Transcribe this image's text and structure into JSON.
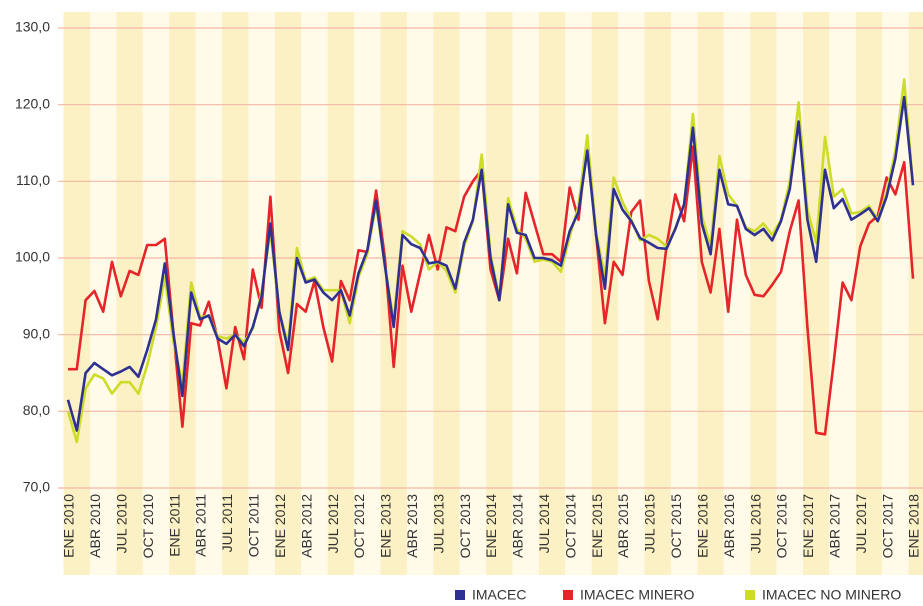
{
  "chart_data": {
    "type": "line",
    "categories": [
      "ENE 2010",
      null,
      null,
      "ABR 2010",
      null,
      null,
      "JUL 2010",
      null,
      null,
      "OCT 2010",
      null,
      null,
      "ENE 2011",
      null,
      null,
      "ABR 2011",
      null,
      null,
      "JUL 2011",
      null,
      null,
      "OCT 2011",
      null,
      null,
      "ENE 2012",
      null,
      null,
      "ABR 2012",
      null,
      null,
      "JUL 2012",
      null,
      null,
      "OCT 2012",
      null,
      null,
      "ENE 2013",
      null,
      null,
      "ABR 2013",
      null,
      null,
      "JUL 2013",
      null,
      null,
      "OCT 2013",
      null,
      null,
      "ENE 2014",
      null,
      null,
      "ABR 2014",
      null,
      null,
      "JUL 2014",
      null,
      null,
      "OCT 2014",
      null,
      null,
      "ENE 2015",
      null,
      null,
      "ABR 2015",
      null,
      null,
      "JUL 2015",
      null,
      null,
      "OCT 2015",
      null,
      null,
      "ENE 2016",
      null,
      null,
      "ABR 2016",
      null,
      null,
      "JUL 2016",
      null,
      null,
      "OCT 2016",
      null,
      null,
      "ENE 2017",
      null,
      null,
      "ABR 2017",
      null,
      null,
      "JUL 2017",
      null,
      null,
      "OCT 2017",
      null,
      null,
      "ENE 2018"
    ],
    "series": [
      {
        "name": "IMACEC",
        "color": "#2e3192",
        "values": [
          81.5,
          77.5,
          85,
          86.3,
          85.5,
          84.7,
          85.2,
          85.8,
          84.5,
          88,
          92,
          99.3,
          90,
          82,
          95.5,
          92,
          92.5,
          89.5,
          88.8,
          90,
          88.5,
          91,
          95,
          104.5,
          93,
          88,
          100,
          96.8,
          97.2,
          95.5,
          94.5,
          95.8,
          92.5,
          98,
          101,
          107.5,
          99,
          91,
          103,
          101.8,
          101.3,
          99.3,
          99.5,
          99,
          96,
          102,
          105,
          111.5,
          100,
          94.5,
          107,
          103.3,
          103,
          100,
          100,
          99.7,
          99,
          103.5,
          106,
          114,
          103,
          96,
          109,
          106.3,
          104.8,
          102.6,
          102,
          101.3,
          101.2,
          103.8,
          107,
          117,
          104.5,
          100.5,
          111.5,
          107,
          106.8,
          103.8,
          103,
          103.8,
          102.3,
          104.8,
          109,
          117.8,
          105,
          99.5,
          111.5,
          106.5,
          107.7,
          105,
          105.7,
          106.5,
          104.8,
          108,
          113,
          121,
          109.5
        ]
      },
      {
        "name": "IMACEC MINERO",
        "color": "#e5252a",
        "values": [
          85.5,
          85.5,
          94.5,
          95.7,
          93,
          99.5,
          95,
          98.3,
          97.8,
          101.7,
          101.7,
          102.5,
          90,
          78,
          91.5,
          91.2,
          94.3,
          89.5,
          83,
          91,
          86.8,
          98.5,
          93.5,
          108,
          90.5,
          85,
          94,
          93,
          97,
          91,
          86.5,
          97,
          94.5,
          101,
          100.8,
          108.8,
          100,
          85.8,
          99,
          93,
          98,
          103,
          98.5,
          104,
          103.5,
          108,
          110,
          111.5,
          98.5,
          94.5,
          102.5,
          98,
          108.5,
          104.5,
          100.5,
          100.5,
          99.5,
          109.2,
          105,
          115.5,
          103,
          91.5,
          99.5,
          97.8,
          106,
          107.5,
          97,
          92,
          101.5,
          108.3,
          104.8,
          114.5,
          99.5,
          95.5,
          103.8,
          93,
          105,
          97.8,
          95.2,
          95,
          96.5,
          98.2,
          103.5,
          107.5,
          91,
          77.2,
          77,
          86.5,
          96.8,
          94.5,
          101.5,
          104.5,
          105.5,
          110.5,
          108.3,
          112.5,
          97.3
        ]
      },
      {
        "name": "IMACEC NO MINERO",
        "color": "#cddc29",
        "values": [
          80,
          76,
          83,
          84.8,
          84.3,
          82.3,
          83.8,
          83.8,
          82.3,
          86,
          91,
          97.5,
          89,
          83.5,
          96.8,
          92.3,
          92.5,
          89.8,
          89.5,
          90,
          89,
          90.8,
          95.5,
          103.5,
          93,
          88.8,
          101.3,
          97,
          97.5,
          95.8,
          95.8,
          95.8,
          91.5,
          97.5,
          100.5,
          107,
          99,
          91.8,
          103.5,
          102.8,
          101.8,
          98.5,
          99.5,
          98.3,
          95.5,
          101.5,
          104.8,
          113.5,
          100.5,
          94.8,
          107.8,
          103.8,
          102.5,
          99.5,
          99.8,
          99.5,
          98.2,
          102.8,
          106.8,
          116,
          103.3,
          97.5,
          110.5,
          107.3,
          105,
          102.3,
          103,
          102.5,
          101.5,
          103.8,
          107,
          118.8,
          105.5,
          101.5,
          113.3,
          108.3,
          106.8,
          104,
          103.5,
          104.5,
          103,
          105,
          110,
          120.3,
          106.3,
          102,
          115.8,
          108,
          109,
          105.8,
          106,
          106.8,
          105,
          108.5,
          114,
          123.3,
          109.5
        ]
      }
    ],
    "ylim": [
      70,
      130
    ],
    "yticks": [
      {
        "value": 70,
        "label": "70,0"
      },
      {
        "value": 80,
        "label": "80,0"
      },
      {
        "value": 90,
        "label": "90,0"
      },
      {
        "value": 100,
        "label": "100,0"
      },
      {
        "value": 110,
        "label": "110,0"
      },
      {
        "value": 120,
        "label": "120,0"
      },
      {
        "value": 130,
        "label": "130,0"
      }
    ],
    "grid": true,
    "legend": "bottom-right"
  }
}
